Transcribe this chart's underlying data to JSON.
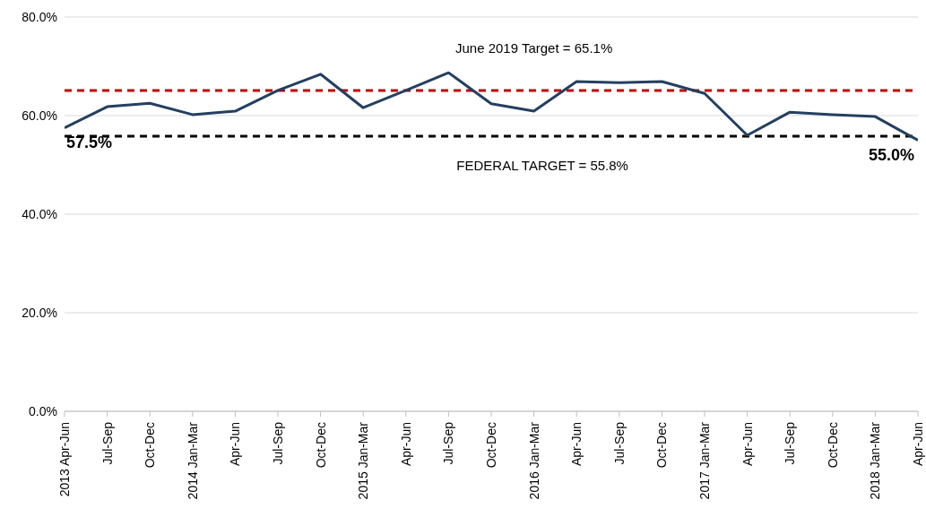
{
  "chart_data": {
    "type": "line",
    "categories": [
      "2013 Apr-Jun",
      "Jul-Sep",
      "Oct-Dec",
      "2014 Jan-Mar",
      "Apr-Jun",
      "Jul-Sep",
      "Oct-Dec",
      "2015 Jan-Mar",
      "Apr-Jun",
      "Jul-Sep",
      "Oct-Dec",
      "2016 Jan-Mar",
      "Apr-Jun",
      "Jul-Sep",
      "Oct-Dec",
      "2017 Jan-Mar",
      "Apr-Jun",
      "Jul-Sep",
      "Oct-Dec",
      "2018 Jan-Mar",
      "Apr-Jun"
    ],
    "series": [
      {
        "color": "#243f60",
        "values": [
          57.5,
          61.8,
          62.5,
          60.2,
          60.9,
          65.1,
          68.4,
          61.6,
          65.1,
          68.7,
          62.4,
          60.9,
          66.9,
          66.7,
          66.9,
          64.5,
          56.0,
          60.7,
          60.2,
          59.8,
          55.0
        ],
        "value_labels": [
          "57.5%",
          null,
          null,
          null,
          null,
          null,
          null,
          null,
          null,
          null,
          null,
          null,
          null,
          null,
          null,
          null,
          null,
          null,
          null,
          null,
          "55.0%"
        ]
      }
    ],
    "ylim": [
      0,
      80
    ],
    "yticks": [
      {
        "value": 0,
        "label": "0.0%"
      },
      {
        "value": 20,
        "label": "20.0%"
      },
      {
        "value": 40,
        "label": "40.0%"
      },
      {
        "value": 60,
        "label": "60.0%"
      },
      {
        "value": 80,
        "label": "80.0%"
      }
    ],
    "grid": "y",
    "marker": "none",
    "line_style": "solid",
    "ref_lines": [
      {
        "axis": "y",
        "value": 65.1,
        "label": "June 2019 Target = 65.1%",
        "color": "#c00000",
        "line_style": "dashed"
      },
      {
        "axis": "y",
        "value": 55.8,
        "label": "FEDERAL TARGET = 55.8%",
        "color": "#000000",
        "line_style": "dashed"
      }
    ]
  }
}
